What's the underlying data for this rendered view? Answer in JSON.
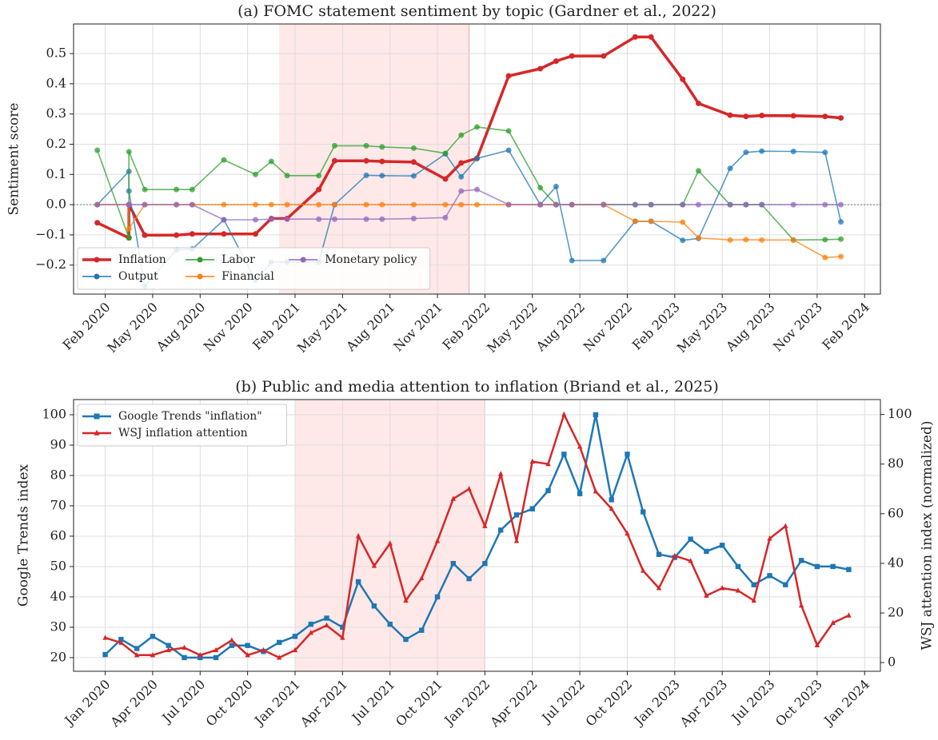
{
  "chart_data": [
    {
      "type": "line",
      "title": "(a) FOMC statement sentiment by topic (Gardner et al., 2022)",
      "ylabel": "Sentiment score",
      "x": [
        "2020-01",
        "2020-03",
        "2020-03",
        "2020-04",
        "2020-06",
        "2020-07",
        "2020-09",
        "2020-11",
        "2020-12",
        "2021-01",
        "2021-03",
        "2021-04",
        "2021-06",
        "2021-07",
        "2021-09",
        "2021-11",
        "2021-12",
        "2022-01",
        "2022-03",
        "2022-05",
        "2022-06",
        "2022-07",
        "2022-09",
        "2022-11",
        "2022-12",
        "2023-02",
        "2023-03",
        "2023-05",
        "2023-06",
        "2023-07",
        "2023-09",
        "2023-11",
        "2023-12"
      ],
      "series": [
        {
          "name": "Inflation",
          "color": "#d62728",
          "linewidth": 3.5,
          "marker": "o",
          "values": [
            -0.06,
            -0.11,
            0.0,
            -0.101,
            -0.101,
            -0.097,
            -0.097,
            -0.097,
            -0.046,
            -0.046,
            0.05,
            0.145,
            0.145,
            0.143,
            0.141,
            0.085,
            0.138,
            0.153,
            0.426,
            0.45,
            0.475,
            0.492,
            0.492,
            0.555,
            0.555,
            0.415,
            0.335,
            0.296,
            0.292,
            0.295,
            0.294,
            0.292,
            0.287
          ]
        },
        {
          "name": "Output",
          "color": "#1f77b4",
          "linewidth": 1.6,
          "marker": "o",
          "values": [
            0.0,
            0.11,
            0.045,
            -0.27,
            -0.15,
            -0.147,
            -0.05,
            -0.25,
            -0.19,
            -0.19,
            -0.19,
            0.0,
            0.097,
            0.096,
            0.095,
            0.168,
            0.092,
            0.153,
            0.18,
            0.0,
            0.06,
            -0.185,
            -0.185,
            -0.055,
            -0.055,
            -0.118,
            -0.112,
            0.12,
            0.173,
            0.177,
            0.176,
            0.173,
            -0.057
          ]
        },
        {
          "name": "Labor",
          "color": "#2ca02c",
          "linewidth": 1.6,
          "marker": "o",
          "values": [
            0.18,
            -0.11,
            0.175,
            0.05,
            0.05,
            0.05,
            0.148,
            0.1,
            0.143,
            0.096,
            0.096,
            0.195,
            0.195,
            0.191,
            0.187,
            0.17,
            0.23,
            0.257,
            0.244,
            0.056,
            0.0,
            0.0,
            0.0,
            0.0,
            0.0,
            0.0,
            0.112,
            0.0,
            0.0,
            0.0,
            -0.117,
            -0.116,
            -0.114
          ]
        },
        {
          "name": "Financial",
          "color": "#ff7f0e",
          "linewidth": 1.6,
          "marker": "o",
          "values": [
            0.0,
            0.0,
            -0.08,
            0.0,
            0.0,
            0.0,
            0.0,
            0.0,
            0.0,
            0.0,
            0.0,
            0.0,
            0.0,
            0.0,
            0.0,
            0.0,
            0.0,
            0.0,
            0.0,
            0.0,
            0.0,
            0.0,
            0.0,
            -0.055,
            -0.055,
            -0.058,
            -0.11,
            -0.117,
            -0.116,
            -0.117,
            -0.117,
            -0.175,
            -0.172
          ]
        },
        {
          "name": "Monetary policy",
          "color": "#9467bd",
          "linewidth": 1.6,
          "marker": "o",
          "values": [
            0.0,
            0.0,
            0.0,
            0.0,
            0.0,
            0.0,
            -0.05,
            -0.05,
            -0.048,
            -0.048,
            -0.048,
            -0.048,
            -0.048,
            -0.048,
            -0.046,
            -0.043,
            0.045,
            0.05,
            0.0,
            0.0,
            0.0,
            0.0,
            0.0,
            0.0,
            0.0,
            0.0,
            0.0,
            0.0,
            0.0,
            0.0,
            0.0,
            0.0,
            0.0
          ]
        }
      ],
      "xlim": [
        "2019-12",
        "2024-03"
      ],
      "xticks": [
        {
          "value": "2020-02",
          "label": "Feb 2020"
        },
        {
          "value": "2020-05",
          "label": "May 2020"
        },
        {
          "value": "2020-08",
          "label": "Aug 2020"
        },
        {
          "value": "2020-11",
          "label": "Nov 2020"
        },
        {
          "value": "2021-02",
          "label": "Feb 2021"
        },
        {
          "value": "2021-05",
          "label": "May 2021"
        },
        {
          "value": "2021-08",
          "label": "Aug 2021"
        },
        {
          "value": "2021-11",
          "label": "Nov 2021"
        },
        {
          "value": "2022-02",
          "label": "Feb 2022"
        },
        {
          "value": "2022-05",
          "label": "May 2022"
        },
        {
          "value": "2022-08",
          "label": "Aug 2022"
        },
        {
          "value": "2022-11",
          "label": "Nov 2022"
        },
        {
          "value": "2023-02",
          "label": "Feb 2023"
        },
        {
          "value": "2023-05",
          "label": "May 2023"
        },
        {
          "value": "2023-08",
          "label": "Aug 2023"
        },
        {
          "value": "2023-11",
          "label": "Nov 2023"
        },
        {
          "value": "2024-02",
          "label": "Feb 2024"
        }
      ],
      "ylim": [
        -0.296,
        0.598
      ],
      "yticks": [
        {
          "value": -0.2,
          "label": "−0.2"
        },
        {
          "value": -0.1,
          "label": "−0.1"
        },
        {
          "value": 0,
          "label": "0.0"
        },
        0.1,
        0.2,
        0.3,
        0.4,
        0.5
      ],
      "hline": 0,
      "shaded_span": [
        "2021-01",
        "2022-01"
      ],
      "grid": true,
      "legend": "lower left",
      "legend_columns": 3
    },
    {
      "type": "line",
      "title": "(b) Public and media attention to inflation (Briand et al., 2025)",
      "ylabel": "Google Trends index",
      "ylabel_color": "#1f77b4",
      "y2label": "WSJ attention index (normalized)",
      "y2label_color": "#d62728",
      "x": [
        "2020-01",
        "2020-02",
        "2020-03",
        "2020-04",
        "2020-05",
        "2020-06",
        "2020-07",
        "2020-08",
        "2020-09",
        "2020-10",
        "2020-11",
        "2020-12",
        "2021-01",
        "2021-02",
        "2021-03",
        "2021-04",
        "2021-05",
        "2021-06",
        "2021-07",
        "2021-08",
        "2021-09",
        "2021-10",
        "2021-11",
        "2021-12",
        "2022-01",
        "2022-02",
        "2022-03",
        "2022-04",
        "2022-05",
        "2022-06",
        "2022-07",
        "2022-08",
        "2022-09",
        "2022-10",
        "2022-11",
        "2022-12",
        "2023-01",
        "2023-02",
        "2023-03",
        "2023-04",
        "2023-05",
        "2023-06",
        "2023-07",
        "2023-08",
        "2023-09",
        "2023-10",
        "2023-11",
        "2023-12"
      ],
      "series": [
        {
          "name": "Google Trends \"inflation\"",
          "color": "#1f77b4",
          "linewidth": 2.5,
          "marker": "s",
          "values": [
            21,
            26,
            23,
            27,
            24,
            20,
            20,
            20,
            24,
            24,
            22,
            25,
            27,
            31,
            33,
            30,
            45,
            37,
            31,
            26,
            29,
            40,
            51,
            46,
            51,
            62,
            67,
            69,
            75,
            87,
            74,
            100,
            72,
            87,
            68,
            54,
            53,
            59,
            55,
            57,
            50,
            44,
            47,
            44,
            52,
            50,
            50,
            49
          ]
        },
        {
          "name": "WSJ inflation attention",
          "color": "#d62728",
          "linewidth": 2.5,
          "marker": "^",
          "axis": "y2",
          "values": [
            10,
            8,
            3,
            3,
            5,
            6,
            3,
            5,
            9,
            3,
            5,
            2,
            5,
            12,
            15,
            10,
            51,
            39,
            48,
            25,
            34,
            49,
            66,
            70,
            55,
            76,
            49,
            81,
            80,
            100,
            87,
            69,
            62,
            52,
            37,
            30,
            43,
            41,
            27,
            30,
            29,
            25,
            50,
            55,
            23,
            7,
            16,
            19
          ]
        }
      ],
      "xlim": [
        "2019-11",
        "2024-02"
      ],
      "xticks": [
        {
          "value": "2020-01",
          "label": "Jan 2020"
        },
        {
          "value": "2020-04",
          "label": "Apr 2020"
        },
        {
          "value": "2020-07",
          "label": "Jul 2020"
        },
        {
          "value": "2020-10",
          "label": "Oct 2020"
        },
        {
          "value": "2021-01",
          "label": "Jan 2021"
        },
        {
          "value": "2021-04",
          "label": "Apr 2021"
        },
        {
          "value": "2021-07",
          "label": "Jul 2021"
        },
        {
          "value": "2021-10",
          "label": "Oct 2021"
        },
        {
          "value": "2022-01",
          "label": "Jan 2022"
        },
        {
          "value": "2022-04",
          "label": "Apr 2022"
        },
        {
          "value": "2022-07",
          "label": "Jul 2022"
        },
        {
          "value": "2022-10",
          "label": "Oct 2022"
        },
        {
          "value": "2023-01",
          "label": "Jan 2023"
        },
        {
          "value": "2023-04",
          "label": "Apr 2023"
        },
        {
          "value": "2023-07",
          "label": "Jul 2023"
        },
        {
          "value": "2023-10",
          "label": "Oct 2023"
        },
        {
          "value": "2024-01",
          "label": "Jan 2024"
        }
      ],
      "ylim": [
        15.5,
        105
      ],
      "yticks": [
        20,
        30,
        40,
        50,
        60,
        70,
        80,
        90,
        100
      ],
      "y2lim": [
        -3.5,
        106
      ],
      "y2ticks": [
        0,
        20,
        40,
        60,
        80,
        100
      ],
      "shaded_span": [
        "2021-01",
        "2022-01"
      ],
      "grid": true,
      "legend": "upper left",
      "legend_columns": 1
    }
  ]
}
